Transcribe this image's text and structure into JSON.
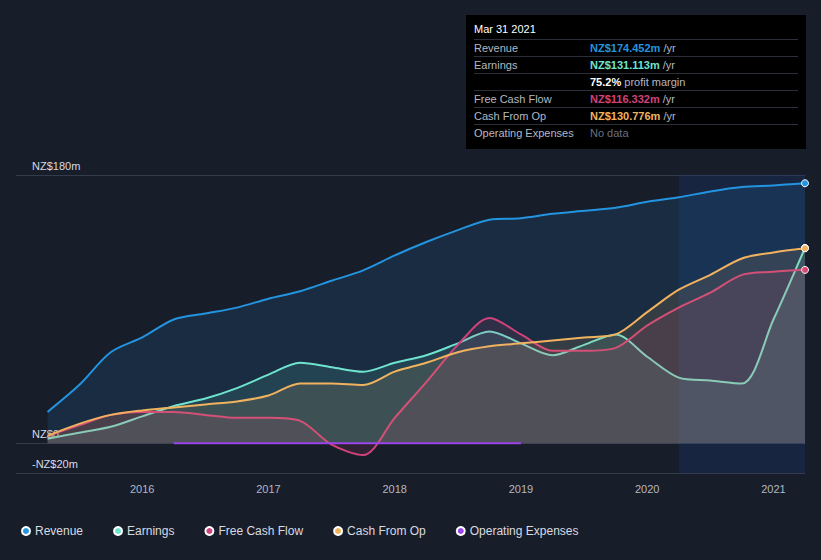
{
  "chart_data": {
    "type": "line",
    "x": [
      2015.25,
      2015.5,
      2015.75,
      2016,
      2016.25,
      2016.5,
      2016.75,
      2017,
      2017.25,
      2017.5,
      2017.75,
      2018,
      2018.25,
      2018.5,
      2018.75,
      2019,
      2019.25,
      2019.5,
      2019.75,
      2020,
      2020.25,
      2020.5,
      2020.75,
      2021,
      2021.25
    ],
    "series": [
      {
        "name": "Revenue",
        "color": "#2394df",
        "values": [
          21,
          39,
          61,
          71,
          83,
          87,
          91,
          97,
          102,
          109,
          116,
          126,
          135,
          143,
          150,
          151,
          154,
          156,
          158,
          162,
          165,
          169,
          172,
          173,
          174.452
        ]
      },
      {
        "name": "Earnings",
        "color": "#6fe3cf",
        "values": [
          3,
          7,
          11,
          18,
          25,
          30,
          37,
          46,
          54,
          51,
          48,
          54,
          59,
          67,
          75,
          67,
          59,
          66,
          73,
          58,
          44,
          42,
          40,
          83,
          131.113
        ]
      },
      {
        "name": "Free Cash Flow",
        "color": "#d1427a",
        "values": [
          5,
          12,
          19,
          21,
          21,
          19,
          17,
          17,
          15,
          -1,
          -8,
          17,
          41,
          66,
          84,
          73,
          62,
          62,
          64,
          79,
          91,
          101,
          113,
          115,
          116.332
        ]
      },
      {
        "name": "Cash From Op",
        "color": "#f1b25f",
        "values": [
          5,
          13,
          19,
          22,
          24,
          26,
          28,
          32,
          40,
          40,
          39,
          48,
          54,
          61,
          65,
          67,
          69,
          71,
          73,
          88,
          103,
          113,
          124,
          128,
          130.776
        ]
      },
      {
        "name": "Operating Expenses",
        "color": "#9b44e8",
        "values": [
          null,
          null,
          null,
          null,
          0,
          0,
          0,
          0,
          0,
          0,
          0,
          0,
          0,
          0,
          0,
          0,
          null,
          null,
          null,
          null,
          null,
          null,
          null,
          null,
          null
        ]
      }
    ],
    "xlim": [
      2015,
      2021.25
    ],
    "xticks": [
      2016,
      2017,
      2018,
      2019,
      2020,
      2021
    ],
    "ylim": [
      -20,
      180
    ],
    "yticks": [
      {
        "value": -20,
        "label": "-NZ$20m"
      },
      {
        "value": 0,
        "label": "NZ$0"
      },
      {
        "value": 180,
        "label": "NZ$180m"
      }
    ],
    "shaded_range": [
      2020.25,
      2021.25
    ],
    "grid": true,
    "legend": "bottom",
    "tooltip_box": {
      "title": "Mar 31 2021",
      "rows": [
        {
          "label": "Revenue",
          "value": "NZ$174.452m",
          "suffix": "/yr"
        },
        {
          "label": "Earnings",
          "value": "NZ$131.113m",
          "suffix": "/yr"
        },
        {
          "value": "75.2%",
          "suffix": "profit margin"
        },
        {
          "label": "Free Cash Flow",
          "value": "NZ$116.332m",
          "suffix": "/yr"
        },
        {
          "label": "Cash From Op",
          "value": "NZ$130.776m",
          "suffix": "/yr"
        },
        {
          "label": "Operating Expenses",
          "value": "No data"
        }
      ]
    }
  }
}
